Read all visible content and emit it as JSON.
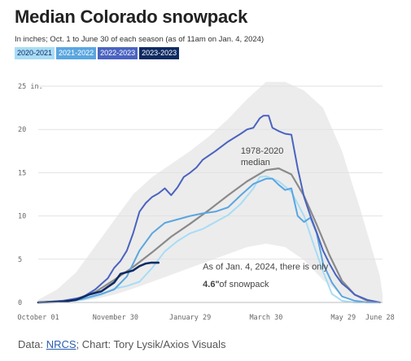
{
  "title": "Median Colorado snowpack",
  "subtitle": "In inches; Oct. 1 to June 30 of each season (as of 11am on Jan. 4, 2024)",
  "colors": {
    "s2020": "#a8dcf5",
    "s2021": "#5aa6e0",
    "s2022": "#4a63c0",
    "s2023": "#0e2a63",
    "median": "#8a8a8a",
    "band": "#ececec"
  },
  "chart_data": {
    "type": "line",
    "title": "Median Colorado snowpack",
    "subtitle": "In inches; Oct. 1 to June 30 of each season (as of 11am on Jan. 4, 2024)",
    "xlabel": "",
    "ylabel": "",
    "x_unit": "days since Oct 1",
    "xlim": [
      0,
      272
    ],
    "ylim": [
      0,
      25
    ],
    "y_ticks": [
      0,
      5,
      10,
      15,
      20,
      25
    ],
    "y_tick_labels": [
      "0",
      "5",
      "10",
      "15",
      "20",
      "25 in."
    ],
    "x_ticks": [
      0,
      61,
      120,
      180,
      241,
      270
    ],
    "x_tick_labels": [
      "October 01",
      "November 30",
      "January 29",
      "March 30",
      "May 29",
      "June 28"
    ],
    "legend": [
      "2020-2021",
      "2021-2022",
      "2022-2023",
      "2023-2023"
    ],
    "grid": true,
    "band": {
      "name": "historical range",
      "x": [
        0,
        15,
        30,
        45,
        60,
        75,
        90,
        105,
        120,
        135,
        150,
        165,
        180,
        195,
        210,
        225,
        240,
        255,
        270,
        272
      ],
      "low": [
        0,
        0,
        0.1,
        0.4,
        0.9,
        1.6,
        2.4,
        3.2,
        4.0,
        4.8,
        5.6,
        6.4,
        6.8,
        6.4,
        4.9,
        2.6,
        0.8,
        0.1,
        0,
        0
      ],
      "high": [
        0.3,
        1.5,
        3.5,
        6.5,
        9.5,
        12.5,
        14.5,
        16.0,
        17.5,
        19.2,
        21.2,
        23.5,
        25.5,
        25.5,
        24.5,
        22.5,
        17.5,
        10.5,
        3.0,
        1.0
      ]
    },
    "annotations": [
      {
        "text": "1978-2020",
        "x": 160,
        "y": 17.2
      },
      {
        "text": "median",
        "x": 160,
        "y": 15.9
      },
      {
        "text": "As of Jan. 4, 2024, there is only",
        "x": 130,
        "y": 3.8
      },
      {
        "text": "4.6\"",
        "x": 130,
        "y": 1.8,
        "bold": true
      },
      {
        "text": "of snowpack",
        "x": 143,
        "y": 1.8
      }
    ],
    "series": [
      {
        "name": "1978-2020 median",
        "color": "#8a8a8a",
        "x": [
          0,
          15,
          30,
          45,
          60,
          75,
          90,
          105,
          120,
          135,
          150,
          165,
          180,
          190,
          200,
          210,
          220,
          230,
          240,
          250,
          260,
          270
        ],
        "y": [
          0,
          0.1,
          0.4,
          1.2,
          2.6,
          4.1,
          5.8,
          7.6,
          9.1,
          10.7,
          12.4,
          14.0,
          15.3,
          15.5,
          14.8,
          12.3,
          9.0,
          5.5,
          2.5,
          0.9,
          0.2,
          0
        ]
      },
      {
        "name": "2020-2021",
        "color": "#a8dcf5",
        "x": [
          0,
          20,
          35,
          50,
          60,
          70,
          80,
          90,
          100,
          110,
          120,
          130,
          140,
          150,
          160,
          170,
          175,
          180,
          190,
          200,
          210,
          218,
          225,
          232,
          240,
          250,
          260,
          270
        ],
        "y": [
          0,
          0.1,
          0.3,
          0.9,
          1.6,
          1.9,
          2.4,
          4.0,
          5.9,
          7.1,
          8.0,
          8.5,
          9.3,
          10.1,
          11.4,
          13.2,
          14.5,
          14.6,
          14.0,
          12.8,
          10.0,
          6.5,
          3.6,
          1.0,
          0.2,
          0,
          0,
          0
        ]
      },
      {
        "name": "2021-2022",
        "color": "#5aa6e0",
        "x": [
          0,
          20,
          35,
          50,
          60,
          70,
          80,
          90,
          100,
          110,
          120,
          130,
          140,
          150,
          160,
          170,
          180,
          185,
          190,
          195,
          200,
          205,
          210,
          215,
          220,
          225,
          232,
          240,
          250,
          260,
          270
        ],
        "y": [
          0,
          0.1,
          0.4,
          1.0,
          1.5,
          3.0,
          6.0,
          8.0,
          9.2,
          9.6,
          10.0,
          10.3,
          10.5,
          11.0,
          12.4,
          13.7,
          14.3,
          14.3,
          13.6,
          13.0,
          13.2,
          10.0,
          9.3,
          9.8,
          8.0,
          4.5,
          2.3,
          0.7,
          0.2,
          0,
          0
        ]
      },
      {
        "name": "2022-2023",
        "color": "#4a63c0",
        "x": [
          0,
          20,
          35,
          45,
          55,
          60,
          65,
          70,
          75,
          80,
          85,
          90,
          95,
          100,
          105,
          110,
          115,
          120,
          125,
          130,
          140,
          150,
          160,
          165,
          170,
          175,
          178,
          182,
          185,
          190,
          195,
          200,
          205,
          210,
          215,
          220,
          225,
          230,
          235,
          240,
          245,
          250,
          260,
          270
        ],
        "y": [
          0,
          0.2,
          0.6,
          1.5,
          2.8,
          4.0,
          4.8,
          6.0,
          8.0,
          10.5,
          11.5,
          12.2,
          12.6,
          13.2,
          12.4,
          13.3,
          14.5,
          15.0,
          15.6,
          16.5,
          17.5,
          18.6,
          19.5,
          20.0,
          20.2,
          21.3,
          21.6,
          21.6,
          20.2,
          19.8,
          19.5,
          19.4,
          15.5,
          12.2,
          10.0,
          8.1,
          6.0,
          4.5,
          3.2,
          2.2,
          1.6,
          0.9,
          0.3,
          0
        ]
      },
      {
        "name": "2023-2023",
        "color": "#0e2a63",
        "x": [
          0,
          20,
          30,
          40,
          50,
          55,
          60,
          65,
          70,
          75,
          80,
          85,
          89,
          90,
          95
        ],
        "y": [
          0,
          0.1,
          0.3,
          0.9,
          1.3,
          1.8,
          2.3,
          3.3,
          3.5,
          3.7,
          4.2,
          4.5,
          4.6,
          4.6,
          4.6
        ]
      }
    ]
  },
  "footer": {
    "prefix": "Data: ",
    "link": "NRCS",
    "suffix": "; Chart: Tory Lysik/Axios Visuals"
  }
}
